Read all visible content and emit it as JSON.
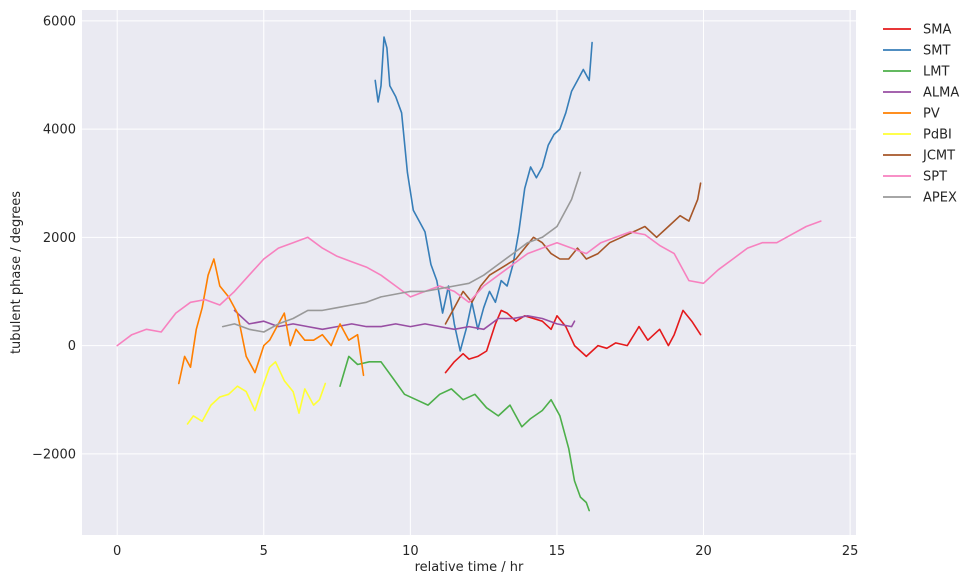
{
  "chart_data": {
    "type": "line",
    "title": "",
    "xlabel": "relative time / hr",
    "ylabel": "tubulent phase / degrees",
    "xlim": [
      -1.2,
      25.2
    ],
    "ylim": [
      -3500,
      6200
    ],
    "xticks": [
      0,
      5,
      10,
      15,
      20,
      25
    ],
    "yticks": [
      -2000,
      0,
      2000,
      4000,
      6000
    ],
    "xtick_labels": [
      "0",
      "5",
      "10",
      "15",
      "20",
      "25"
    ],
    "ytick_labels": [
      "−2000",
      "0",
      "2000",
      "4000",
      "6000"
    ],
    "grid": true,
    "legend_position": "outside-top-right",
    "series": [
      {
        "name": "SMA",
        "color": "#e41a1c",
        "x": [
          11.2,
          11.5,
          11.8,
          12.0,
          12.3,
          12.6,
          12.9,
          13.1,
          13.3,
          13.6,
          13.9,
          14.2,
          14.5,
          14.8,
          15.0,
          15.3,
          15.6,
          16.0,
          16.4,
          16.7,
          17.0,
          17.4,
          17.8,
          18.1,
          18.5,
          18.8,
          19.0,
          19.3,
          19.6,
          19.9
        ],
        "y": [
          -500,
          -300,
          -150,
          -250,
          -200,
          -100,
          400,
          650,
          600,
          450,
          550,
          500,
          450,
          300,
          550,
          350,
          0,
          -200,
          0,
          -50,
          50,
          0,
          350,
          100,
          300,
          0,
          200,
          650,
          450,
          200
        ]
      },
      {
        "name": "SMT",
        "color": "#377eb8",
        "x": [
          8.8,
          8.9,
          9.0,
          9.1,
          9.2,
          9.3,
          9.5,
          9.7,
          9.9,
          10.1,
          10.3,
          10.5,
          10.7,
          10.9,
          11.1,
          11.3,
          11.5,
          11.7,
          11.9,
          12.1,
          12.3,
          12.5,
          12.7,
          12.9,
          13.1,
          13.3,
          13.5,
          13.7,
          13.9,
          14.1,
          14.3,
          14.5,
          14.7,
          14.9,
          15.1,
          15.3,
          15.5,
          15.7,
          15.9,
          16.1,
          16.2
        ],
        "y": [
          4900,
          4500,
          4800,
          5700,
          5500,
          4800,
          4600,
          4300,
          3200,
          2500,
          2300,
          2100,
          1500,
          1200,
          600,
          1100,
          400,
          -100,
          300,
          800,
          300,
          700,
          1000,
          800,
          1200,
          1100,
          1500,
          2100,
          2900,
          3300,
          3100,
          3300,
          3700,
          3900,
          4000,
          4300,
          4700,
          4900,
          5100,
          4900,
          5600
        ]
      },
      {
        "name": "LMT",
        "color": "#4daf4a",
        "x": [
          7.6,
          7.9,
          8.2,
          8.6,
          9.0,
          9.4,
          9.8,
          10.2,
          10.6,
          11.0,
          11.4,
          11.8,
          12.2,
          12.6,
          13.0,
          13.4,
          13.8,
          14.1,
          14.5,
          14.8,
          15.1,
          15.4,
          15.6,
          15.8,
          16.0,
          16.1
        ],
        "y": [
          -750,
          -200,
          -350,
          -300,
          -300,
          -600,
          -900,
          -1000,
          -1100,
          -900,
          -800,
          -1000,
          -900,
          -1150,
          -1300,
          -1100,
          -1500,
          -1350,
          -1200,
          -1000,
          -1300,
          -1900,
          -2500,
          -2800,
          -2900,
          -3050
        ]
      },
      {
        "name": "ALMA",
        "color": "#984ea3",
        "x": [
          4.0,
          4.5,
          5.0,
          5.5,
          6.0,
          6.5,
          7.0,
          7.5,
          8.0,
          8.5,
          9.0,
          9.5,
          10.0,
          10.5,
          11.0,
          11.5,
          12.0,
          12.5,
          13.0,
          13.5,
          14.0,
          14.5,
          15.0,
          15.5,
          15.6
        ],
        "y": [
          650,
          400,
          450,
          350,
          400,
          350,
          300,
          350,
          400,
          350,
          350,
          400,
          350,
          400,
          350,
          300,
          350,
          300,
          500,
          500,
          550,
          500,
          400,
          350,
          450
        ]
      },
      {
        "name": "PV",
        "color": "#ff7f00",
        "x": [
          2.1,
          2.3,
          2.5,
          2.7,
          2.9,
          3.1,
          3.3,
          3.5,
          3.8,
          4.1,
          4.4,
          4.7,
          5.0,
          5.2,
          5.5,
          5.7,
          5.9,
          6.1,
          6.4,
          6.7,
          7.0,
          7.3,
          7.6,
          7.9,
          8.2,
          8.4
        ],
        "y": [
          -700,
          -200,
          -400,
          300,
          700,
          1300,
          1600,
          1100,
          900,
          600,
          -200,
          -500,
          0,
          100,
          400,
          600,
          0,
          300,
          100,
          100,
          200,
          0,
          400,
          100,
          200,
          -550
        ]
      },
      {
        "name": "PdBI",
        "color": "#ffff33",
        "x": [
          2.4,
          2.6,
          2.9,
          3.2,
          3.5,
          3.8,
          4.1,
          4.4,
          4.7,
          5.0,
          5.2,
          5.4,
          5.7,
          6.0,
          6.2,
          6.4,
          6.7,
          6.9,
          7.1
        ],
        "y": [
          -1450,
          -1300,
          -1400,
          -1100,
          -950,
          -900,
          -750,
          -850,
          -1200,
          -700,
          -400,
          -300,
          -650,
          -850,
          -1250,
          -800,
          -1100,
          -1000,
          -700
        ]
      },
      {
        "name": "JCMT",
        "color": "#a65628",
        "x": [
          11.2,
          11.5,
          11.8,
          12.1,
          12.4,
          12.7,
          13.0,
          13.3,
          13.6,
          13.9,
          14.2,
          14.5,
          14.8,
          15.1,
          15.4,
          15.7,
          16.0,
          16.4,
          16.8,
          17.2,
          17.6,
          18.0,
          18.4,
          18.8,
          19.2,
          19.5,
          19.8,
          19.9
        ],
        "y": [
          400,
          700,
          1000,
          800,
          1100,
          1300,
          1400,
          1500,
          1600,
          1800,
          2000,
          1900,
          1700,
          1600,
          1600,
          1800,
          1600,
          1700,
          1900,
          2000,
          2100,
          2200,
          2000,
          2200,
          2400,
          2300,
          2700,
          3000
        ]
      },
      {
        "name": "SPT",
        "color": "#f781bf",
        "x": [
          0.0,
          0.5,
          1.0,
          1.5,
          2.0,
          2.5,
          3.0,
          3.5,
          4.0,
          4.5,
          5.0,
          5.5,
          6.0,
          6.5,
          7.0,
          7.5,
          8.0,
          8.5,
          9.0,
          9.5,
          10.0,
          10.5,
          11.0,
          11.5,
          12.0,
          12.5,
          13.0,
          13.5,
          14.0,
          14.5,
          15.0,
          15.5,
          16.0,
          16.5,
          17.0,
          17.5,
          18.0,
          18.5,
          19.0,
          19.5,
          20.0,
          20.5,
          21.0,
          21.5,
          22.0,
          22.5,
          23.0,
          23.5,
          24.0
        ],
        "y": [
          0,
          200,
          300,
          250,
          600,
          800,
          850,
          750,
          1000,
          1300,
          1600,
          1800,
          1900,
          2000,
          1800,
          1650,
          1550,
          1450,
          1300,
          1100,
          900,
          1000,
          1100,
          1000,
          800,
          1100,
          1300,
          1500,
          1700,
          1800,
          1900,
          1800,
          1700,
          1900,
          2000,
          2100,
          2050,
          1850,
          1700,
          1200,
          1150,
          1400,
          1600,
          1800,
          1900,
          1900,
          2050,
          2200,
          2300
        ]
      },
      {
        "name": "APEX",
        "color": "#999999",
        "x": [
          3.6,
          4.0,
          4.5,
          5.0,
          5.5,
          6.0,
          6.5,
          7.0,
          7.5,
          8.0,
          8.5,
          9.0,
          9.5,
          10.0,
          10.5,
          11.0,
          11.5,
          12.0,
          12.5,
          13.0,
          13.5,
          14.0,
          14.5,
          15.0,
          15.5,
          15.8
        ],
        "y": [
          350,
          400,
          300,
          250,
          400,
          500,
          650,
          650,
          700,
          750,
          800,
          900,
          950,
          1000,
          1000,
          1050,
          1100,
          1150,
          1300,
          1500,
          1700,
          1900,
          2000,
          2200,
          2700,
          3200
        ]
      }
    ]
  }
}
